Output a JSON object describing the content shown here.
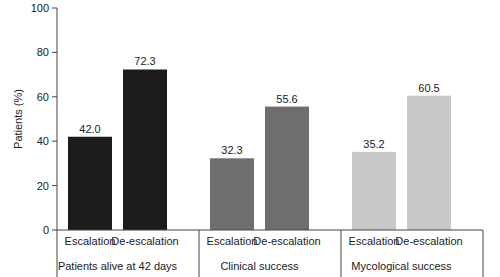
{
  "chart_data": {
    "type": "bar",
    "y_label": "Patients (%)",
    "categories": [
      "Patients alive at 42 days",
      "Clinical success",
      "Mycological success"
    ],
    "series": [
      {
        "name": "Escalation",
        "values": [
          42.0,
          32.3,
          35.2
        ],
        "value_labels": [
          "42.0",
          "32.3",
          "35.2"
        ]
      },
      {
        "name": "De-escalation",
        "values": [
          72.3,
          55.6,
          60.5
        ],
        "value_labels": [
          "72.3",
          "55.6",
          "60.5"
        ]
      }
    ],
    "colors": [
      "#1c1c1c",
      "#6e6e6e",
      "#c9c9c9"
    ],
    "ylim": [
      0,
      100
    ],
    "yticks": [
      0,
      20,
      40,
      60,
      80,
      100
    ],
    "grid": false,
    "data_labels": true
  }
}
